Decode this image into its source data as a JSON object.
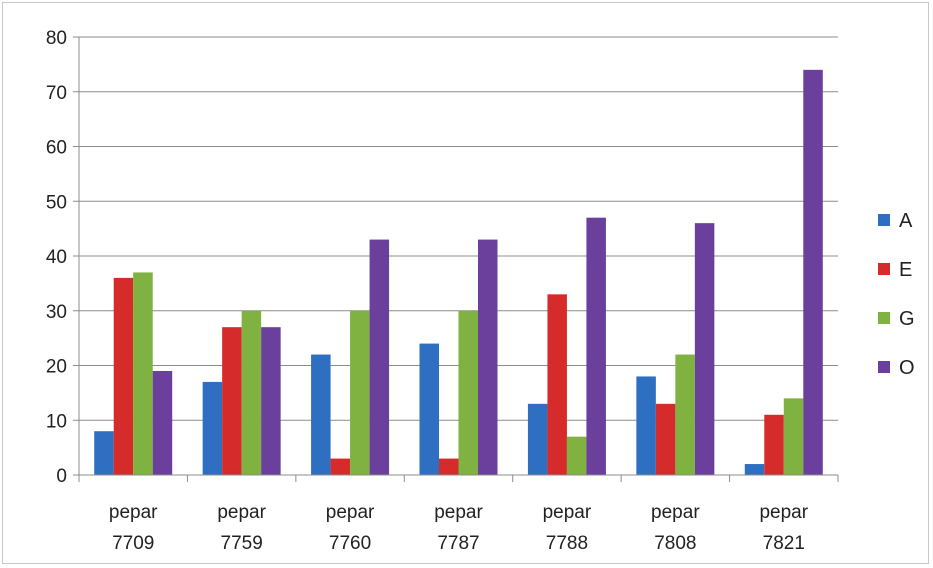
{
  "chart_data": {
    "type": "bar",
    "categories": [
      [
        "pepar",
        "7709"
      ],
      [
        "pepar",
        "7759"
      ],
      [
        "pepar",
        "7760"
      ],
      [
        "pepar",
        "7787"
      ],
      [
        "pepar",
        "7788"
      ],
      [
        "pepar",
        "7808"
      ],
      [
        "pepar",
        "7821"
      ]
    ],
    "series": [
      {
        "name": "A",
        "color": "#2e6fc2",
        "values": [
          8,
          17,
          22,
          24,
          13,
          18,
          2
        ]
      },
      {
        "name": "E",
        "color": "#d62b2b",
        "values": [
          36,
          27,
          3,
          3,
          33,
          13,
          11
        ]
      },
      {
        "name": "G",
        "color": "#7fb241",
        "values": [
          37,
          30,
          30,
          30,
          7,
          22,
          14
        ]
      },
      {
        "name": "O",
        "color": "#6b3f9c",
        "values": [
          19,
          27,
          43,
          43,
          47,
          46,
          74
        ]
      }
    ],
    "yticks": [
      "0",
      "10",
      "20",
      "30",
      "40",
      "50",
      "60",
      "70",
      "80"
    ],
    "ylim": [
      0,
      80
    ],
    "grid": true,
    "legend_position": "right"
  }
}
